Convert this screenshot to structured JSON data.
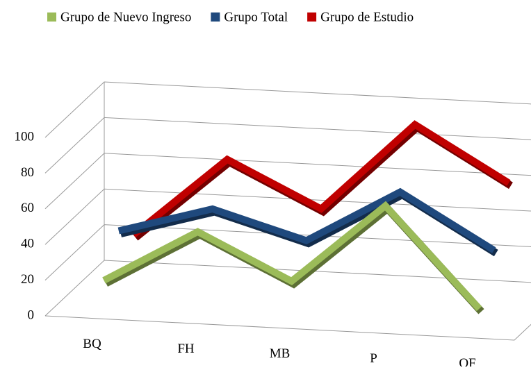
{
  "chart_data": {
    "type": "line3d",
    "categories": [
      "BQ",
      "FH",
      "MB",
      "P",
      "OF"
    ],
    "series": [
      {
        "name": "Grupo de Nuevo Ingreso",
        "color": "#9bbb59",
        "values": [
          15,
          45,
          20,
          65,
          10
        ]
      },
      {
        "name": "Grupo Total",
        "color": "#1f497d",
        "values": [
          35,
          50,
          35,
          65,
          35
        ]
      },
      {
        "name": "Grupo de Estudio",
        "color": "#c00000",
        "values": [
          25,
          70,
          45,
          95,
          65
        ]
      }
    ],
    "ylim": [
      0,
      100
    ],
    "yticks": [
      0,
      20,
      40,
      60,
      80,
      100
    ],
    "grid": true,
    "legend": "top"
  }
}
